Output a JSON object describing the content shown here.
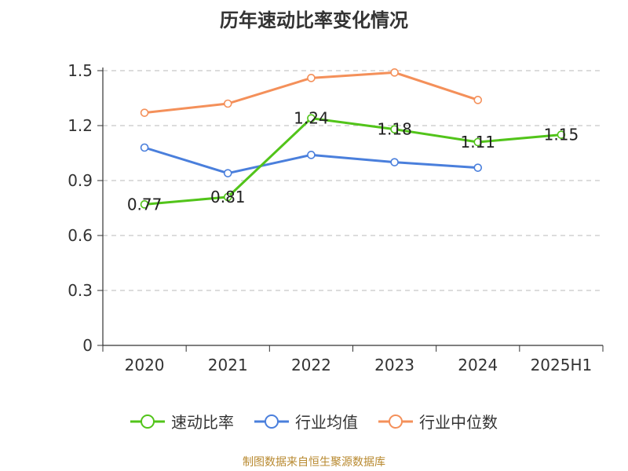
{
  "source_note": "制图数据来自恒生聚源数据库",
  "chart_data": {
    "type": "line",
    "title": "历年速动比率变化情况",
    "categories": [
      "2020",
      "2021",
      "2022",
      "2023",
      "2024",
      "2025H1"
    ],
    "ylim": [
      0,
      1.5
    ],
    "yticks": [
      "0",
      "0.3",
      "0.6",
      "0.9",
      "1.2",
      "1.5"
    ],
    "grid": true,
    "legend_position": "bottom",
    "series": [
      {
        "name": "速动比率",
        "color": "#52c41a",
        "values": [
          0.77,
          0.81,
          1.24,
          1.18,
          1.11,
          1.15
        ],
        "labels": [
          "0.77",
          "0.81",
          "1.24",
          "1.18",
          "1.11",
          "1.15"
        ]
      },
      {
        "name": "行业均值",
        "color": "#4a7fdc",
        "values": [
          1.08,
          0.94,
          1.04,
          1.0,
          0.97,
          null
        ]
      },
      {
        "name": "行业中位数",
        "color": "#f4905a",
        "values": [
          1.27,
          1.32,
          1.46,
          1.49,
          1.34,
          null
        ]
      }
    ]
  }
}
